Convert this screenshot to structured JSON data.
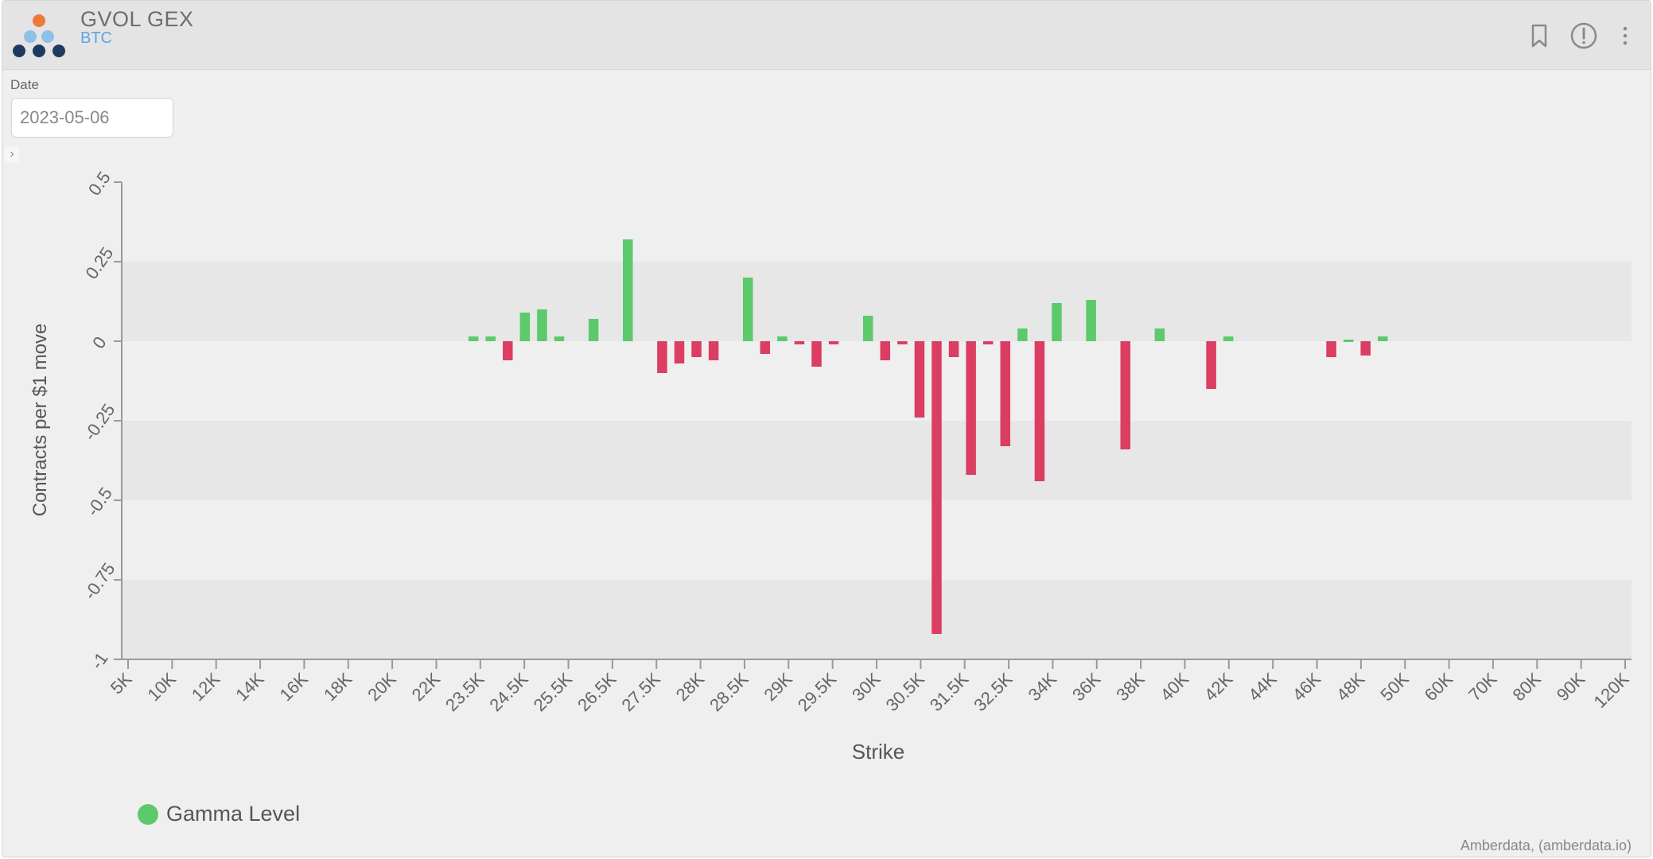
{
  "header": {
    "title": "GVOL GEX",
    "subtitle": "BTC"
  },
  "filters": {
    "date_label": "Date",
    "date_value": "2023-05-06"
  },
  "colors": {
    "positive": "#5cc96b",
    "negative": "#dc3d62",
    "accent": "#5aa4e6"
  },
  "legend": {
    "label": "Gamma Level"
  },
  "credit": "Amberdata, (amberdata.io)",
  "icons": [
    "bookmark-icon",
    "info-icon",
    "more-vertical-icon"
  ],
  "chart_data": {
    "type": "bar",
    "title": "",
    "xlabel": "Strike",
    "ylabel": "Contracts per $1 move",
    "ylim": [
      -1,
      0.5
    ],
    "y_ticks": [
      0.5,
      0.25,
      0,
      -0.25,
      -0.5,
      -0.75,
      -1
    ],
    "y_tick_labels": [
      "0.5",
      "0.25",
      "0",
      "-0.25",
      "-0.5",
      "-0.75",
      "-1"
    ],
    "tick_labels": [
      "5K",
      "10K",
      "12K",
      "14K",
      "16K",
      "18K",
      "20K",
      "22K",
      "23.5K",
      "24.5K",
      "25.5K",
      "26.5K",
      "27.5K",
      "28K",
      "28.5K",
      "29K",
      "29.5K",
      "30K",
      "30.5K",
      "31.5K",
      "32.5K",
      "34K",
      "36K",
      "38K",
      "40K",
      "42K",
      "44K",
      "46K",
      "48K",
      "50K",
      "60K",
      "70K",
      "80K",
      "90K",
      "120K"
    ],
    "series": [
      {
        "name": "Gamma Level",
        "values": [
          0,
          0,
          0,
          0,
          0,
          0,
          0,
          0,
          0,
          0,
          0,
          0,
          0,
          0,
          0,
          0,
          0,
          0,
          0,
          0,
          0.015,
          0.015,
          -0.06,
          0.09,
          0.1,
          0.015,
          0,
          0.07,
          0,
          0.32,
          0,
          -0.1,
          -0.07,
          -0.05,
          -0.06,
          0,
          0.2,
          -0.04,
          0.015,
          -0.01,
          -0.08,
          -0.01,
          0,
          0.08,
          -0.06,
          -0.01,
          -0.24,
          -0.92,
          -0.05,
          -0.42,
          -0.01,
          -0.33,
          0.04,
          -0.44,
          0.12,
          0,
          0.13,
          0,
          -0.34,
          0,
          0.04,
          0,
          0,
          -0.15,
          0.015,
          0,
          0,
          0,
          0,
          0,
          -0.05,
          0.005,
          -0.045,
          0.015,
          0,
          0,
          0,
          0,
          0,
          0,
          0,
          0,
          0,
          0,
          0,
          0,
          0,
          0
        ]
      }
    ],
    "grid": true,
    "legend_position": "bottom-left"
  }
}
